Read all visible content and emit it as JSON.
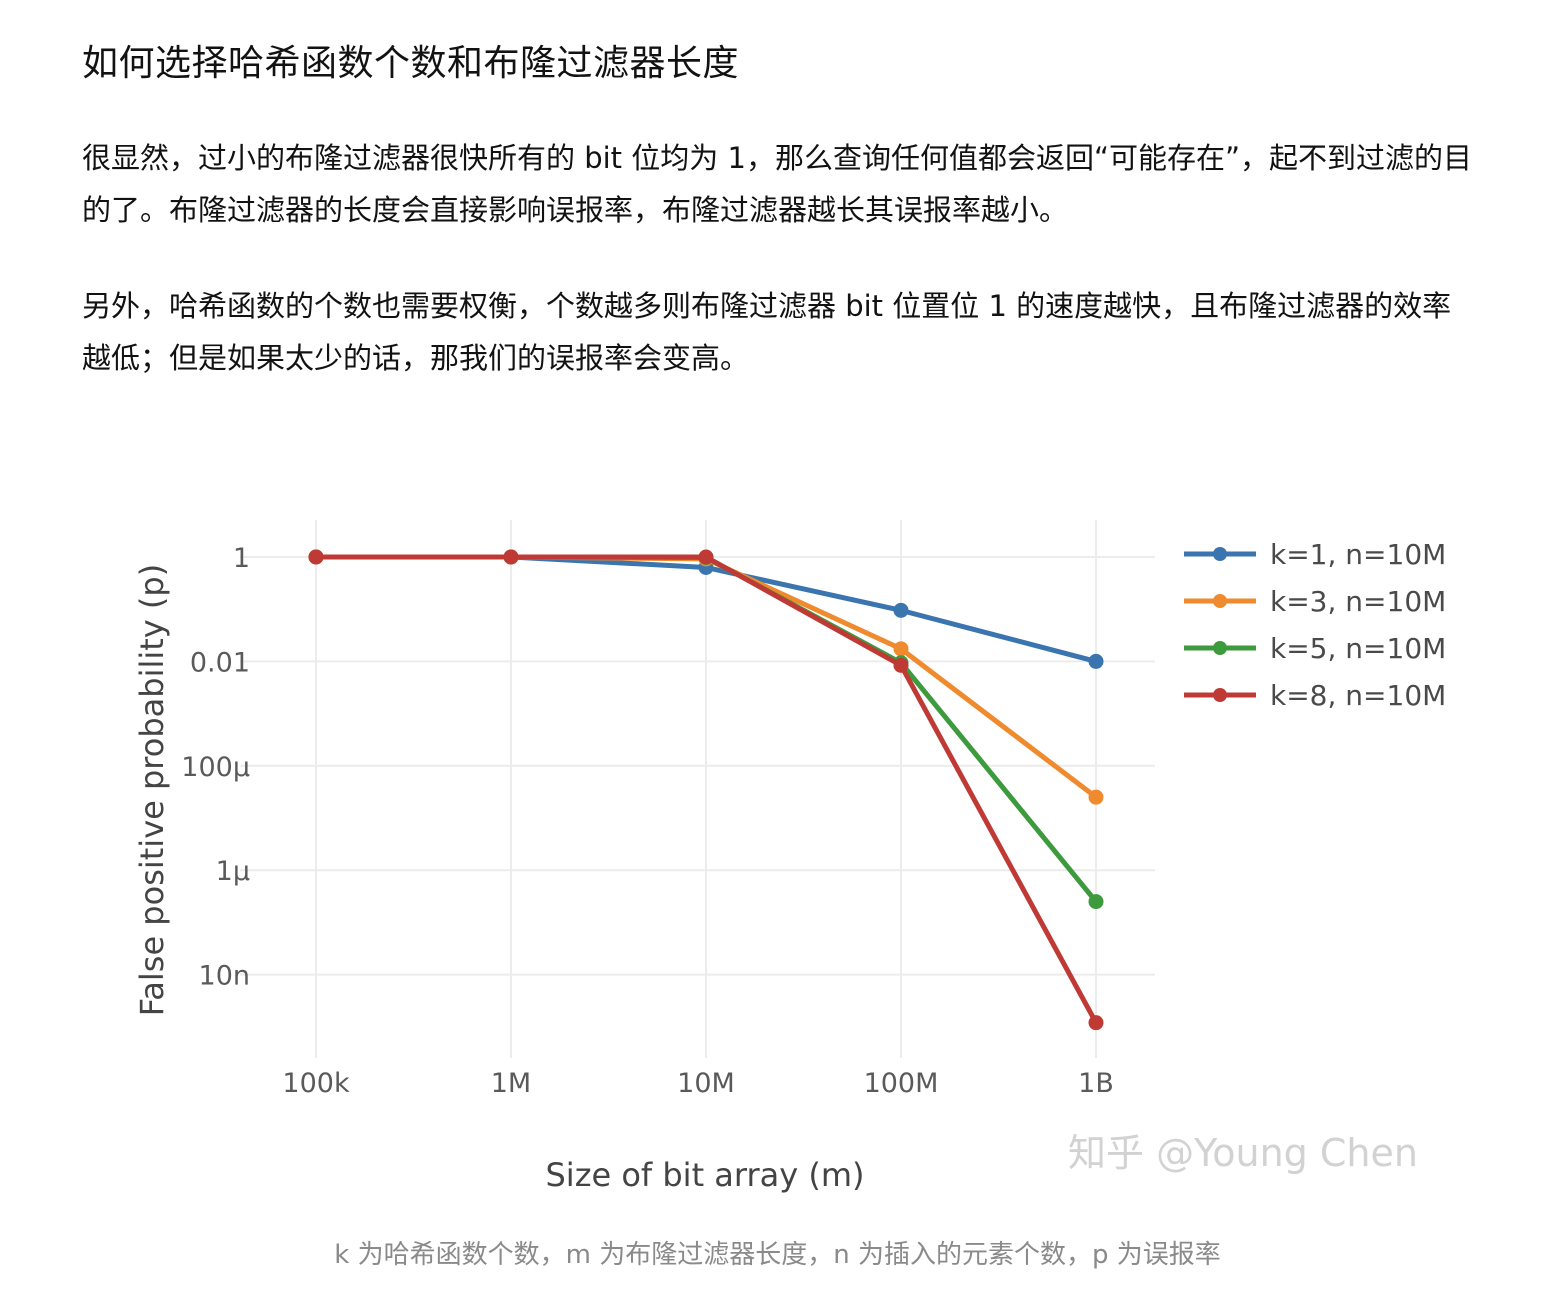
{
  "article": {
    "heading": "如何选择哈希函数个数和布隆过滤器长度",
    "paragraph_1": "很显然，过小的布隆过滤器很快所有的 bit 位均为 1，那么查询任何值都会返回“可能存在”，起不到过滤的目的了。布隆过滤器的长度会直接影响误报率，布隆过滤器越长其误报率越小。",
    "paragraph_2": "另外，哈希函数的个数也需要权衡，个数越多则布隆过滤器 bit 位置位 1 的速度越快，且布隆过滤器的效率越低；但是如果太少的话，那我们的误报率会变高。",
    "caption": "k 为哈希函数个数，m 为布隆过滤器长度，n 为插入的元素个数，p 为误报率"
  },
  "watermark": "知乎 @Young Chen",
  "chart_data": {
    "type": "line",
    "title": "",
    "xlabel": "Size of bit array (m)",
    "ylabel": "False positive probability (p)",
    "x_scale": "log",
    "y_scale": "log",
    "categories": [
      "100k",
      "1M",
      "10M",
      "100M",
      "1B"
    ],
    "x": [
      100000,
      1000000,
      10000000,
      100000000,
      1000000000
    ],
    "x_tick_labels": [
      "100k",
      "1M",
      "10M",
      "100M",
      "1B"
    ],
    "y_ticks": [
      1,
      0.01,
      0.0001,
      1e-06,
      1e-08
    ],
    "y_tick_labels": [
      "1",
      "0.01",
      "100μ",
      "1μ",
      "10n"
    ],
    "ylim": [
      3e-10,
      2.5
    ],
    "grid": true,
    "legend_position": "top-right",
    "series": [
      {
        "name": "k=1, n=10M",
        "color": "#3a75b0",
        "values": [
          1.0,
          1.0,
          0.63,
          0.095,
          0.01
        ]
      },
      {
        "name": "k=3, n=10M",
        "color": "#ef8a2e",
        "values": [
          1.0,
          1.0,
          0.92,
          0.0174,
          2.51e-05
        ]
      },
      {
        "name": "k=5, n=10M",
        "color": "#3d9a3d",
        "values": [
          1.0,
          1.0,
          0.98,
          0.0094,
          2.5e-07
        ]
      },
      {
        "name": "k=8, n=10M",
        "color": "#c03a35",
        "values": [
          1.0,
          1.0,
          1.0,
          0.0084,
          1.2e-09
        ]
      }
    ]
  }
}
